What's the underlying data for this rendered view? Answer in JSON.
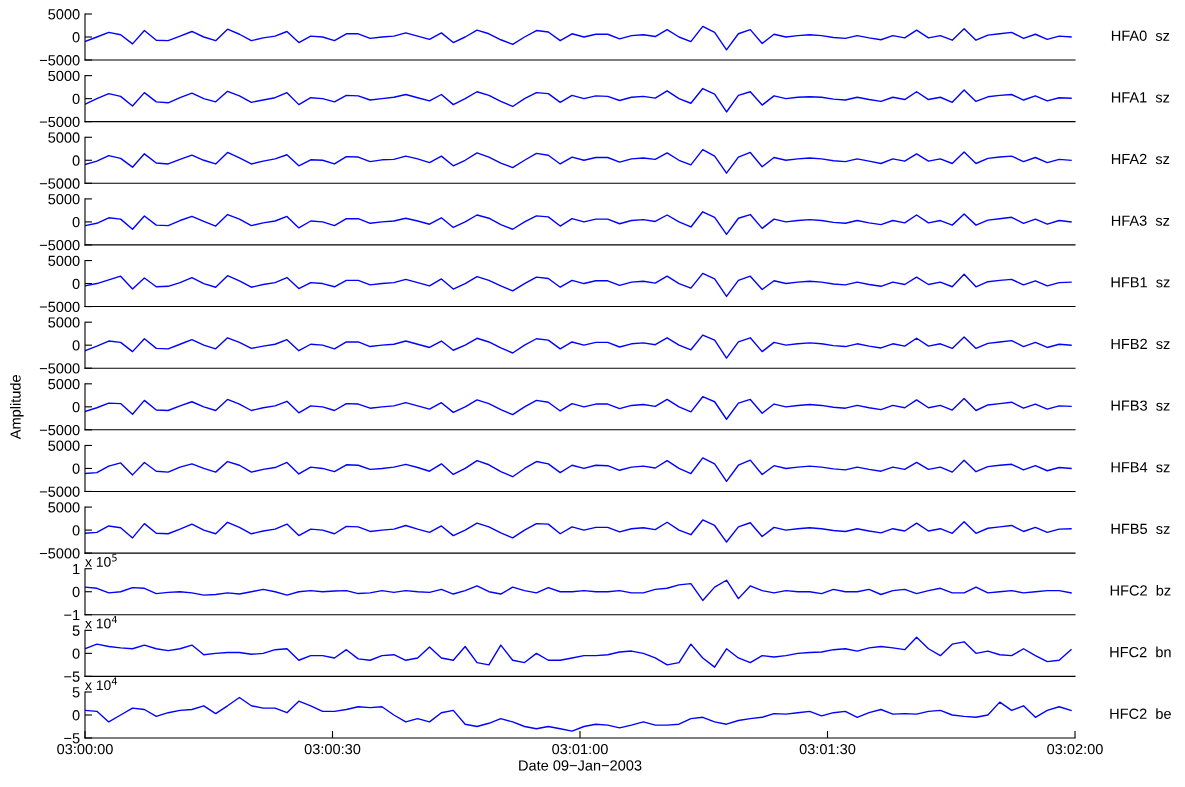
{
  "chart_data": [
    {
      "type": "line",
      "tick_labels": "y",
      "xlim": [
        3,
        3.0333333
      ],
      "ylim": [
        -5000,
        5000
      ],
      "yticks": [
        5000,
        0,
        {
          "value": -5000,
          "label": "−5000"
        }
      ],
      "annotations": [
        "HFA0  sz"
      ],
      "x": [
        3,
        3.0004,
        3.0008,
        3.0012,
        3.0016,
        3.002,
        3.0024,
        3.0028,
        3.0032,
        3.0036,
        3.004,
        3.0044,
        3.0048,
        3.0052,
        3.0056,
        3.006,
        3.0064,
        3.0068,
        3.0072,
        3.0076,
        3.008,
        3.0084,
        3.0088,
        3.0092,
        3.0096,
        3.01,
        3.0104,
        3.0108,
        3.0112,
        3.0116,
        3.012,
        3.0124,
        3.0128,
        3.0132,
        3.0136,
        3.014,
        3.0144,
        3.0148,
        3.0152,
        3.0156,
        3.016,
        3.0164,
        3.0168,
        3.0172,
        3.0176,
        3.018,
        3.0184,
        3.0188,
        3.0192,
        3.0196,
        3.02,
        3.0204,
        3.0208,
        3.0212,
        3.0216,
        3.022,
        3.0224,
        3.0228,
        3.0232,
        3.0236,
        3.024,
        3.0244,
        3.0248,
        3.0252,
        3.0256,
        3.026,
        3.0264,
        3.0268,
        3.0272,
        3.0276,
        3.028,
        3.0284,
        3.0288,
        3.0292,
        3.0296,
        3.03,
        3.0304,
        3.0308,
        3.0312,
        3.0316,
        3.032,
        3.0324,
        3.0328,
        3.0332
      ],
      "series": [
        {
          "color": "#0000ff",
          "values": [
            -1000,
            0,
            1000,
            500,
            -1500,
            1400,
            -700,
            -800,
            200,
            1200,
            0,
            -800,
            1700,
            600,
            -800,
            -200,
            200,
            1200,
            -1200,
            200,
            0,
            -800,
            700,
            700,
            -300,
            0,
            200,
            900,
            200,
            -500,
            900,
            -1200,
            0,
            1500,
            700,
            -600,
            -1600,
            0,
            1400,
            1100,
            -800,
            700,
            0,
            600,
            600,
            -400,
            300,
            500,
            100,
            1600,
            0,
            -1000,
            2300,
            1000,
            -2800,
            700,
            1600,
            -1400,
            600,
            0,
            300,
            500,
            300,
            -100,
            -300,
            300,
            -200,
            -600,
            300,
            -200,
            1500,
            -200,
            300,
            -700,
            1800,
            -700,
            400,
            700,
            1000,
            -300,
            600,
            -500,
            200,
            0
          ]
        }
      ]
    },
    {
      "type": "line",
      "tick_labels": "y",
      "xlim": [
        3,
        3.0333333
      ],
      "ylim": [
        -5000,
        5000
      ],
      "yticks": [
        5000,
        0,
        {
          "value": -5000,
          "label": "−5000"
        }
      ],
      "annotations": [
        "HFA1  sz"
      ],
      "x": [
        3,
        3.0004,
        3.0008,
        3.0012,
        3.0016,
        3.002,
        3.0024,
        3.0028,
        3.0032,
        3.0036,
        3.004,
        3.0044,
        3.0048,
        3.0052,
        3.0056,
        3.006,
        3.0064,
        3.0068,
        3.0072,
        3.0076,
        3.008,
        3.0084,
        3.0088,
        3.0092,
        3.0096,
        3.01,
        3.0104,
        3.0108,
        3.0112,
        3.0116,
        3.012,
        3.0124,
        3.0128,
        3.0132,
        3.0136,
        3.014,
        3.0144,
        3.0148,
        3.0152,
        3.0156,
        3.016,
        3.0164,
        3.0168,
        3.0172,
        3.0176,
        3.018,
        3.0184,
        3.0188,
        3.0192,
        3.0196,
        3.02,
        3.0204,
        3.0208,
        3.0212,
        3.0216,
        3.022,
        3.0224,
        3.0228,
        3.0232,
        3.0236,
        3.024,
        3.0244,
        3.0248,
        3.0252,
        3.0256,
        3.026,
        3.0264,
        3.0268,
        3.0272,
        3.0276,
        3.028,
        3.0284,
        3.0288,
        3.0292,
        3.0296,
        3.03,
        3.0304,
        3.0308,
        3.0312,
        3.0316,
        3.032,
        3.0324,
        3.0328,
        3.0332
      ],
      "series": [
        {
          "color": "#0000ff",
          "values": [
            -1200,
            0,
            1100,
            500,
            -1600,
            1300,
            -700,
            -900,
            200,
            1200,
            0,
            -700,
            1600,
            600,
            -800,
            -300,
            200,
            1300,
            -1300,
            200,
            0,
            -700,
            700,
            600,
            -300,
            0,
            300,
            900,
            200,
            -500,
            900,
            -1300,
            0,
            1500,
            700,
            -600,
            -1700,
            0,
            1300,
            1100,
            -800,
            700,
            0,
            600,
            500,
            -400,
            300,
            500,
            100,
            1700,
            0,
            -1000,
            2200,
            1000,
            -2900,
            700,
            1500,
            -1400,
            600,
            0,
            300,
            400,
            300,
            -100,
            -300,
            300,
            -200,
            -600,
            300,
            -200,
            1500,
            -200,
            300,
            -800,
            1900,
            -600,
            400,
            700,
            900,
            -300,
            600,
            -500,
            200,
            100
          ]
        }
      ]
    },
    {
      "type": "line",
      "tick_labels": "y",
      "xlim": [
        3,
        3.0333333
      ],
      "ylim": [
        -5000,
        5000
      ],
      "yticks": [
        5000,
        0,
        {
          "value": -5000,
          "label": "−5000"
        }
      ],
      "annotations": [
        "HFA2  sz"
      ],
      "x": [
        3,
        3.0004,
        3.0008,
        3.0012,
        3.0016,
        3.002,
        3.0024,
        3.0028,
        3.0032,
        3.0036,
        3.004,
        3.0044,
        3.0048,
        3.0052,
        3.0056,
        3.006,
        3.0064,
        3.0068,
        3.0072,
        3.0076,
        3.008,
        3.0084,
        3.0088,
        3.0092,
        3.0096,
        3.01,
        3.0104,
        3.0108,
        3.0112,
        3.0116,
        3.012,
        3.0124,
        3.0128,
        3.0132,
        3.0136,
        3.014,
        3.0144,
        3.0148,
        3.0152,
        3.0156,
        3.016,
        3.0164,
        3.0168,
        3.0172,
        3.0176,
        3.018,
        3.0184,
        3.0188,
        3.0192,
        3.0196,
        3.02,
        3.0204,
        3.0208,
        3.0212,
        3.0216,
        3.022,
        3.0224,
        3.0228,
        3.0232,
        3.0236,
        3.024,
        3.0244,
        3.0248,
        3.0252,
        3.0256,
        3.026,
        3.0264,
        3.0268,
        3.0272,
        3.0276,
        3.028,
        3.0284,
        3.0288,
        3.0292,
        3.0296,
        3.03,
        3.0304,
        3.0308,
        3.0312,
        3.0316,
        3.032,
        3.0324,
        3.0328,
        3.0332
      ],
      "series": [
        {
          "color": "#0000ff",
          "values": [
            -900,
            -200,
            1000,
            400,
            -1500,
            1400,
            -600,
            -800,
            200,
            1100,
            0,
            -800,
            1700,
            500,
            -800,
            -200,
            300,
            1200,
            -1200,
            100,
            0,
            -800,
            800,
            700,
            -300,
            100,
            200,
            900,
            300,
            -500,
            900,
            -1200,
            0,
            1600,
            700,
            -600,
            -1600,
            0,
            1500,
            1100,
            -800,
            700,
            0,
            600,
            600,
            -400,
            300,
            500,
            200,
            1600,
            0,
            -1000,
            2300,
            900,
            -2800,
            700,
            1700,
            -1400,
            600,
            0,
            300,
            500,
            300,
            -100,
            -300,
            300,
            -200,
            -700,
            300,
            -200,
            1400,
            -200,
            300,
            -700,
            1800,
            -700,
            400,
            700,
            900,
            -300,
            600,
            -500,
            200,
            0
          ]
        }
      ]
    },
    {
      "type": "line",
      "tick_labels": "y",
      "xlim": [
        3,
        3.0333333
      ],
      "ylim": [
        -5000,
        5000
      ],
      "yticks": [
        5000,
        0,
        {
          "value": -5000,
          "label": "−5000"
        }
      ],
      "annotations": [
        "HFA3  sz"
      ],
      "x": [
        3,
        3.0004,
        3.0008,
        3.0012,
        3.0016,
        3.002,
        3.0024,
        3.0028,
        3.0032,
        3.0036,
        3.004,
        3.0044,
        3.0048,
        3.0052,
        3.0056,
        3.006,
        3.0064,
        3.0068,
        3.0072,
        3.0076,
        3.008,
        3.0084,
        3.0088,
        3.0092,
        3.0096,
        3.01,
        3.0104,
        3.0108,
        3.0112,
        3.0116,
        3.012,
        3.0124,
        3.0128,
        3.0132,
        3.0136,
        3.014,
        3.0144,
        3.0148,
        3.0152,
        3.0156,
        3.016,
        3.0164,
        3.0168,
        3.0172,
        3.0176,
        3.018,
        3.0184,
        3.0188,
        3.0192,
        3.0196,
        3.02,
        3.0204,
        3.0208,
        3.0212,
        3.0216,
        3.022,
        3.0224,
        3.0228,
        3.0232,
        3.0236,
        3.024,
        3.0244,
        3.0248,
        3.0252,
        3.0256,
        3.026,
        3.0264,
        3.0268,
        3.0272,
        3.0276,
        3.028,
        3.0284,
        3.0288,
        3.0292,
        3.0296,
        3.03,
        3.0304,
        3.0308,
        3.0312,
        3.0316,
        3.032,
        3.0324,
        3.0328,
        3.0332
      ],
      "series": [
        {
          "color": "#0000ff",
          "values": [
            -800,
            -300,
            900,
            600,
            -1600,
            1300,
            -700,
            -800,
            300,
            1200,
            100,
            -900,
            1600,
            600,
            -800,
            -200,
            200,
            1200,
            -1300,
            200,
            0,
            -800,
            700,
            700,
            -300,
            0,
            200,
            800,
            200,
            -500,
            900,
            -1200,
            0,
            1500,
            800,
            -600,
            -1600,
            0,
            1300,
            1100,
            -900,
            700,
            0,
            600,
            600,
            -400,
            300,
            500,
            100,
            1500,
            0,
            -1100,
            2200,
            1000,
            -2700,
            800,
            1600,
            -1400,
            600,
            0,
            300,
            500,
            300,
            -100,
            -300,
            300,
            -200,
            -600,
            300,
            -200,
            1500,
            -200,
            300,
            -700,
            1700,
            -700,
            400,
            700,
            1000,
            -300,
            600,
            -500,
            300,
            0
          ]
        }
      ]
    },
    {
      "type": "line",
      "tick_labels": "y",
      "xlim": [
        3,
        3.0333333
      ],
      "ylim": [
        -5000,
        5000
      ],
      "yticks": [
        5000,
        0,
        {
          "value": -5000,
          "label": "−5000"
        }
      ],
      "annotations": [
        "HFB1  sz"
      ],
      "x": [
        3,
        3.0004,
        3.0008,
        3.0012,
        3.0016,
        3.002,
        3.0024,
        3.0028,
        3.0032,
        3.0036,
        3.004,
        3.0044,
        3.0048,
        3.0052,
        3.0056,
        3.006,
        3.0064,
        3.0068,
        3.0072,
        3.0076,
        3.008,
        3.0084,
        3.0088,
        3.0092,
        3.0096,
        3.01,
        3.0104,
        3.0108,
        3.0112,
        3.0116,
        3.012,
        3.0124,
        3.0128,
        3.0132,
        3.0136,
        3.014,
        3.0144,
        3.0148,
        3.0152,
        3.0156,
        3.016,
        3.0164,
        3.0168,
        3.0172,
        3.0176,
        3.018,
        3.0184,
        3.0188,
        3.0192,
        3.0196,
        3.02,
        3.0204,
        3.0208,
        3.0212,
        3.0216,
        3.022,
        3.0224,
        3.0228,
        3.0232,
        3.0236,
        3.024,
        3.0244,
        3.0248,
        3.0252,
        3.0256,
        3.026,
        3.0264,
        3.0268,
        3.0272,
        3.0276,
        3.028,
        3.0284,
        3.0288,
        3.0292,
        3.0296,
        3.03,
        3.0304,
        3.0308,
        3.0312,
        3.0316,
        3.032,
        3.0324,
        3.0328,
        3.0332
      ],
      "series": [
        {
          "color": "#0000ff",
          "values": [
            -500,
            0,
            800,
            1600,
            -1200,
            1200,
            -700,
            -600,
            200,
            1300,
            0,
            -800,
            1700,
            600,
            -800,
            -200,
            200,
            1300,
            -1100,
            200,
            0,
            -700,
            700,
            700,
            -300,
            0,
            200,
            900,
            200,
            -500,
            1000,
            -1200,
            0,
            1500,
            700,
            -500,
            -1600,
            0,
            1400,
            1100,
            -800,
            700,
            0,
            600,
            600,
            -400,
            300,
            500,
            100,
            1600,
            0,
            -1000,
            2200,
            1000,
            -2800,
            700,
            1600,
            -1300,
            600,
            0,
            300,
            500,
            300,
            -100,
            -300,
            300,
            -200,
            -600,
            300,
            -200,
            1400,
            -200,
            300,
            -700,
            2000,
            -700,
            400,
            700,
            900,
            -300,
            600,
            -500,
            200,
            300
          ]
        }
      ]
    },
    {
      "type": "line",
      "tick_labels": "y",
      "xlim": [
        3,
        3.0333333
      ],
      "ylim": [
        -5000,
        5000
      ],
      "yticks": [
        5000,
        0,
        {
          "value": -5000,
          "label": "−5000"
        }
      ],
      "annotations": [
        "HFB2  sz"
      ],
      "x": [
        3,
        3.0004,
        3.0008,
        3.0012,
        3.0016,
        3.002,
        3.0024,
        3.0028,
        3.0032,
        3.0036,
        3.004,
        3.0044,
        3.0048,
        3.0052,
        3.0056,
        3.006,
        3.0064,
        3.0068,
        3.0072,
        3.0076,
        3.008,
        3.0084,
        3.0088,
        3.0092,
        3.0096,
        3.01,
        3.0104,
        3.0108,
        3.0112,
        3.0116,
        3.012,
        3.0124,
        3.0128,
        3.0132,
        3.0136,
        3.014,
        3.0144,
        3.0148,
        3.0152,
        3.0156,
        3.016,
        3.0164,
        3.0168,
        3.0172,
        3.0176,
        3.018,
        3.0184,
        3.0188,
        3.0192,
        3.0196,
        3.02,
        3.0204,
        3.0208,
        3.0212,
        3.0216,
        3.022,
        3.0224,
        3.0228,
        3.0232,
        3.0236,
        3.024,
        3.0244,
        3.0248,
        3.0252,
        3.0256,
        3.026,
        3.0264,
        3.0268,
        3.0272,
        3.0276,
        3.028,
        3.0284,
        3.0288,
        3.0292,
        3.0296,
        3.03,
        3.0304,
        3.0308,
        3.0312,
        3.0316,
        3.032,
        3.0324,
        3.0328,
        3.0332
      ],
      "series": [
        {
          "color": "#0000ff",
          "values": [
            -1200,
            -200,
            900,
            600,
            -1400,
            1400,
            -700,
            -800,
            200,
            1200,
            0,
            -800,
            1600,
            600,
            -700,
            -200,
            200,
            1200,
            -1200,
            200,
            0,
            -800,
            700,
            700,
            -300,
            0,
            200,
            900,
            200,
            -500,
            900,
            -1100,
            0,
            1500,
            700,
            -600,
            -1700,
            0,
            1400,
            1100,
            -800,
            700,
            0,
            600,
            600,
            -400,
            300,
            500,
            100,
            1600,
            0,
            -1000,
            2200,
            1100,
            -2800,
            700,
            1600,
            -1400,
            600,
            0,
            300,
            500,
            300,
            -100,
            -300,
            300,
            -200,
            -600,
            300,
            -200,
            1500,
            -200,
            300,
            -700,
            1800,
            -700,
            400,
            700,
            1000,
            -300,
            600,
            -500,
            200,
            0
          ]
        }
      ]
    },
    {
      "type": "line",
      "tick_labels": "y",
      "xlim": [
        3,
        3.0333333
      ],
      "ylim": [
        -5000,
        5000
      ],
      "yticks": [
        5000,
        0,
        {
          "value": -5000,
          "label": "−5000"
        }
      ],
      "ylabel": "Amplitude",
      "annotations": [
        "HFB3  sz"
      ],
      "x": [
        3,
        3.0004,
        3.0008,
        3.0012,
        3.0016,
        3.002,
        3.0024,
        3.0028,
        3.0032,
        3.0036,
        3.004,
        3.0044,
        3.0048,
        3.0052,
        3.0056,
        3.006,
        3.0064,
        3.0068,
        3.0072,
        3.0076,
        3.008,
        3.0084,
        3.0088,
        3.0092,
        3.0096,
        3.01,
        3.0104,
        3.0108,
        3.0112,
        3.0116,
        3.012,
        3.0124,
        3.0128,
        3.0132,
        3.0136,
        3.014,
        3.0144,
        3.0148,
        3.0152,
        3.0156,
        3.016,
        3.0164,
        3.0168,
        3.0172,
        3.0176,
        3.018,
        3.0184,
        3.0188,
        3.0192,
        3.0196,
        3.02,
        3.0204,
        3.0208,
        3.0212,
        3.0216,
        3.022,
        3.0224,
        3.0228,
        3.0232,
        3.0236,
        3.024,
        3.0244,
        3.0248,
        3.0252,
        3.0256,
        3.026,
        3.0264,
        3.0268,
        3.0272,
        3.0276,
        3.028,
        3.0284,
        3.0288,
        3.0292,
        3.0296,
        3.03,
        3.0304,
        3.0308,
        3.0312,
        3.0316,
        3.032,
        3.0324,
        3.0328,
        3.0332
      ],
      "series": [
        {
          "color": "#0000ff",
          "values": [
            -1000,
            -200,
            800,
            700,
            -1600,
            1400,
            -700,
            -800,
            200,
            1100,
            0,
            -800,
            1600,
            600,
            -800,
            -200,
            200,
            1200,
            -1300,
            200,
            0,
            -800,
            700,
            600,
            -300,
            0,
            200,
            900,
            200,
            -500,
            900,
            -1200,
            0,
            1500,
            700,
            -600,
            -1700,
            0,
            1400,
            1000,
            -900,
            700,
            0,
            600,
            600,
            -400,
            300,
            500,
            100,
            1600,
            0,
            -1100,
            2200,
            1100,
            -2700,
            800,
            1600,
            -1400,
            600,
            0,
            300,
            500,
            300,
            -100,
            -300,
            300,
            -200,
            -600,
            300,
            -200,
            1500,
            -200,
            300,
            -700,
            1800,
            -800,
            400,
            700,
            1000,
            -300,
            600,
            -500,
            200,
            100
          ]
        }
      ]
    },
    {
      "type": "line",
      "tick_labels": "y",
      "xlim": [
        3,
        3.0333333
      ],
      "ylim": [
        -5000,
        5000
      ],
      "yticks": [
        5000,
        0,
        {
          "value": -5000,
          "label": "−5000"
        }
      ],
      "annotations": [
        "HFB4  sz"
      ],
      "x": [
        3,
        3.0004,
        3.0008,
        3.0012,
        3.0016,
        3.002,
        3.0024,
        3.0028,
        3.0032,
        3.0036,
        3.004,
        3.0044,
        3.0048,
        3.0052,
        3.0056,
        3.006,
        3.0064,
        3.0068,
        3.0072,
        3.0076,
        3.008,
        3.0084,
        3.0088,
        3.0092,
        3.0096,
        3.01,
        3.0104,
        3.0108,
        3.0112,
        3.0116,
        3.012,
        3.0124,
        3.0128,
        3.0132,
        3.0136,
        3.014,
        3.0144,
        3.0148,
        3.0152,
        3.0156,
        3.016,
        3.0164,
        3.0168,
        3.0172,
        3.0176,
        3.018,
        3.0184,
        3.0188,
        3.0192,
        3.0196,
        3.02,
        3.0204,
        3.0208,
        3.0212,
        3.0216,
        3.022,
        3.0224,
        3.0228,
        3.0232,
        3.0236,
        3.024,
        3.0244,
        3.0248,
        3.0252,
        3.0256,
        3.026,
        3.0264,
        3.0268,
        3.0272,
        3.0276,
        3.028,
        3.0284,
        3.0288,
        3.0292,
        3.0296,
        3.03,
        3.0304,
        3.0308,
        3.0312,
        3.0316,
        3.032,
        3.0324,
        3.0328,
        3.0332
      ],
      "series": [
        {
          "color": "#0000ff",
          "values": [
            -1100,
            -900,
            500,
            1200,
            -1400,
            1300,
            -600,
            -800,
            300,
            1000,
            0,
            -800,
            1500,
            700,
            -800,
            -200,
            200,
            1300,
            -1200,
            300,
            0,
            -700,
            800,
            700,
            -200,
            0,
            300,
            900,
            200,
            -600,
            1000,
            -1300,
            0,
            1700,
            800,
            -700,
            -1800,
            0,
            1500,
            1000,
            -900,
            700,
            0,
            700,
            600,
            -400,
            300,
            500,
            100,
            1700,
            0,
            -1100,
            2300,
            1000,
            -2800,
            700,
            1800,
            -1300,
            600,
            0,
            300,
            500,
            300,
            -100,
            -300,
            300,
            -200,
            -600,
            300,
            -200,
            1300,
            -200,
            300,
            -800,
            1800,
            -700,
            400,
            700,
            900,
            -300,
            600,
            -500,
            200,
            0
          ]
        }
      ]
    },
    {
      "type": "line",
      "tick_labels": "y",
      "xlim": [
        3,
        3.0333333
      ],
      "ylim": [
        -5000,
        5000
      ],
      "yticks": [
        5000,
        0,
        {
          "value": -5000,
          "label": "−5000"
        }
      ],
      "annotations": [
        "HFB5  sz"
      ],
      "x": [
        3,
        3.0004,
        3.0008,
        3.0012,
        3.0016,
        3.002,
        3.0024,
        3.0028,
        3.0032,
        3.0036,
        3.004,
        3.0044,
        3.0048,
        3.0052,
        3.0056,
        3.006,
        3.0064,
        3.0068,
        3.0072,
        3.0076,
        3.008,
        3.0084,
        3.0088,
        3.0092,
        3.0096,
        3.01,
        3.0104,
        3.0108,
        3.0112,
        3.0116,
        3.012,
        3.0124,
        3.0128,
        3.0132,
        3.0136,
        3.014,
        3.0144,
        3.0148,
        3.0152,
        3.0156,
        3.016,
        3.0164,
        3.0168,
        3.0172,
        3.0176,
        3.018,
        3.0184,
        3.0188,
        3.0192,
        3.0196,
        3.02,
        3.0204,
        3.0208,
        3.0212,
        3.0216,
        3.022,
        3.0224,
        3.0228,
        3.0232,
        3.0236,
        3.024,
        3.0244,
        3.0248,
        3.0252,
        3.0256,
        3.026,
        3.0264,
        3.0268,
        3.0272,
        3.0276,
        3.028,
        3.0284,
        3.0288,
        3.0292,
        3.0296,
        3.03,
        3.0304,
        3.0308,
        3.0312,
        3.0316,
        3.032,
        3.0324,
        3.0328,
        3.0332
      ],
      "series": [
        {
          "color": "#0000ff",
          "values": [
            -700,
            -500,
            900,
            500,
            -1700,
            1400,
            -700,
            -800,
            200,
            1300,
            0,
            -800,
            1700,
            600,
            -800,
            -200,
            200,
            1300,
            -1200,
            200,
            0,
            -800,
            800,
            700,
            -300,
            0,
            200,
            1000,
            200,
            -500,
            900,
            -1200,
            0,
            1500,
            700,
            -600,
            -1700,
            0,
            1400,
            1300,
            -800,
            700,
            0,
            600,
            600,
            -400,
            300,
            500,
            100,
            1700,
            0,
            -1000,
            2200,
            1000,
            -2600,
            700,
            1600,
            -1400,
            600,
            0,
            300,
            500,
            300,
            -100,
            -300,
            300,
            -200,
            -600,
            300,
            -200,
            1500,
            -200,
            300,
            -700,
            1800,
            -700,
            400,
            700,
            1000,
            -300,
            600,
            -500,
            200,
            300
          ]
        }
      ]
    },
    {
      "type": "line",
      "tick_labels": "y",
      "xlim": [
        3,
        3.0333333
      ],
      "ylim": [
        -1,
        1
      ],
      "yticks": [
        1,
        0,
        {
          "value": -1,
          "label": "−1"
        }
      ],
      "annotations": [
        "HFC2  bz",
        "x 10$^{5}$"
      ],
      "x": [
        3,
        3.0004,
        3.0008,
        3.0012,
        3.0016,
        3.002,
        3.0024,
        3.0028,
        3.0032,
        3.0036,
        3.004,
        3.0044,
        3.0048,
        3.0052,
        3.0056,
        3.006,
        3.0064,
        3.0068,
        3.0072,
        3.0076,
        3.008,
        3.0084,
        3.0088,
        3.0092,
        3.0096,
        3.01,
        3.0104,
        3.0108,
        3.0112,
        3.0116,
        3.012,
        3.0124,
        3.0128,
        3.0132,
        3.0136,
        3.014,
        3.0144,
        3.0148,
        3.0152,
        3.0156,
        3.016,
        3.0164,
        3.0168,
        3.0172,
        3.0176,
        3.018,
        3.0184,
        3.0188,
        3.0192,
        3.0196,
        3.02,
        3.0204,
        3.0208,
        3.0212,
        3.0216,
        3.022,
        3.0224,
        3.0228,
        3.0232,
        3.0236,
        3.024,
        3.0244,
        3.0248,
        3.0252,
        3.0256,
        3.026,
        3.0264,
        3.0268,
        3.0272,
        3.0276,
        3.028,
        3.0284,
        3.0288,
        3.0292,
        3.0296,
        3.03,
        3.0304,
        3.0308,
        3.0312,
        3.0316,
        3.032,
        3.0324,
        3.0328,
        3.0332
      ],
      "series": [
        {
          "color": "#0000ff",
          "values": [
            0.2,
            0.15,
            -0.05,
            0,
            0.18,
            0.15,
            -0.08,
            -0.03,
            0,
            -0.05,
            -0.15,
            -0.12,
            -0.05,
            -0.1,
            0,
            0.1,
            0,
            -0.15,
            0,
            0.05,
            0,
            0.03,
            0.05,
            -0.08,
            -0.05,
            0.05,
            -0.03,
            0.05,
            0,
            -0.03,
            0.1,
            -0.1,
            0.05,
            0.25,
            0,
            -0.1,
            0.2,
            0.05,
            -0.05,
            0.18,
            0,
            0,
            0.05,
            0,
            0,
            0.05,
            -0.05,
            -0.05,
            0.1,
            0.15,
            0.3,
            0.35,
            -0.38,
            0.2,
            0.5,
            -0.3,
            0.25,
            0.05,
            -0.05,
            0.05,
            0,
            0,
            -0.08,
            0.1,
            0,
            0,
            0.1,
            -0.12,
            0.05,
            0.1,
            -0.08,
            0.05,
            0.15,
            -0.05,
            -0.05,
            0.2,
            -0.05,
            0,
            0.05,
            -0.05,
            0,
            0.05,
            0.05,
            -0.05
          ]
        }
      ]
    },
    {
      "type": "line",
      "tick_labels": "y",
      "xlim": [
        3,
        3.0333333
      ],
      "ylim": [
        -5,
        5
      ],
      "yticks": [
        5,
        0,
        {
          "value": -5,
          "label": "−5"
        }
      ],
      "annotations": [
        "HFC2  bn",
        "x 10$^{4}$"
      ],
      "x": [
        3,
        3.0004,
        3.0008,
        3.0012,
        3.0016,
        3.002,
        3.0024,
        3.0028,
        3.0032,
        3.0036,
        3.004,
        3.0044,
        3.0048,
        3.0052,
        3.0056,
        3.006,
        3.0064,
        3.0068,
        3.0072,
        3.0076,
        3.008,
        3.0084,
        3.0088,
        3.0092,
        3.0096,
        3.01,
        3.0104,
        3.0108,
        3.0112,
        3.0116,
        3.012,
        3.0124,
        3.0128,
        3.0132,
        3.0136,
        3.014,
        3.0144,
        3.0148,
        3.0152,
        3.0156,
        3.016,
        3.0164,
        3.0168,
        3.0172,
        3.0176,
        3.018,
        3.0184,
        3.0188,
        3.0192,
        3.0196,
        3.02,
        3.0204,
        3.0208,
        3.0212,
        3.0216,
        3.022,
        3.0224,
        3.0228,
        3.0232,
        3.0236,
        3.024,
        3.0244,
        3.0248,
        3.0252,
        3.0256,
        3.026,
        3.0264,
        3.0268,
        3.0272,
        3.0276,
        3.028,
        3.0284,
        3.0288,
        3.0292,
        3.0296,
        3.03,
        3.0304,
        3.0308,
        3.0312,
        3.0316,
        3.032,
        3.0324,
        3.0328,
        3.0332
      ],
      "series": [
        {
          "color": "#0000ff",
          "values": [
            1,
            2,
            1.5,
            1.2,
            1,
            1.8,
            1,
            0.6,
            1,
            1.8,
            -0.3,
            0,
            0.2,
            0.2,
            -0.2,
            0,
            0.8,
            1,
            -1.5,
            -0.5,
            -0.5,
            -1,
            0.8,
            -1.2,
            -1.5,
            -0.5,
            -0.3,
            -1.5,
            -1,
            1.4,
            -1,
            -1.5,
            1.5,
            -2,
            -2.5,
            1.8,
            -1.5,
            -2,
            0,
            -1.5,
            -1.5,
            -1,
            -0.5,
            -0.5,
            -0.3,
            0.3,
            0.5,
            0,
            -1,
            -2.5,
            -2,
            2,
            -1,
            -3,
            1,
            -1,
            -2,
            -0.5,
            -0.8,
            -0.5,
            0,
            0.2,
            0.3,
            0.8,
            1,
            0.5,
            1.2,
            1.5,
            1.2,
            0.8,
            3.5,
            1,
            -0.5,
            2,
            2.5,
            0,
            0.5,
            -0.3,
            -0.5,
            1,
            -0.5,
            -1.8,
            -1.5,
            0.8
          ]
        }
      ]
    },
    {
      "type": "line",
      "xlim": [
        3,
        3.0333333
      ],
      "ylim": [
        -5,
        5
      ],
      "yticks": [
        5,
        0,
        {
          "value": -5,
          "label": "−5"
        }
      ],
      "xlabel": "Date 09−Jan−2003",
      "annotations": [
        "HFC2  be",
        "x 10$^{4}$"
      ],
      "xticks": [
        {
          "value": 3,
          "label": "03:00:00"
        },
        {
          "value": 3.0083333,
          "label": "03:00:30"
        },
        {
          "value": 3.0166667,
          "label": "03:01:00"
        },
        {
          "value": 3.025,
          "label": "03:01:30"
        },
        {
          "value": 3.0333333,
          "label": "03:02:00"
        }
      ],
      "x": [
        3,
        3.0004,
        3.0008,
        3.0012,
        3.0016,
        3.002,
        3.0024,
        3.0028,
        3.0032,
        3.0036,
        3.004,
        3.0044,
        3.0048,
        3.0052,
        3.0056,
        3.006,
        3.0064,
        3.0068,
        3.0072,
        3.0076,
        3.008,
        3.0084,
        3.0088,
        3.0092,
        3.0096,
        3.01,
        3.0104,
        3.0108,
        3.0112,
        3.0116,
        3.012,
        3.0124,
        3.0128,
        3.0132,
        3.0136,
        3.014,
        3.0144,
        3.0148,
        3.0152,
        3.0156,
        3.016,
        3.0164,
        3.0168,
        3.0172,
        3.0176,
        3.018,
        3.0184,
        3.0188,
        3.0192,
        3.0196,
        3.02,
        3.0204,
        3.0208,
        3.0212,
        3.0216,
        3.022,
        3.0224,
        3.0228,
        3.0232,
        3.0236,
        3.024,
        3.0244,
        3.0248,
        3.0252,
        3.0256,
        3.026,
        3.0264,
        3.0268,
        3.0272,
        3.0276,
        3.028,
        3.0284,
        3.0288,
        3.0292,
        3.0296,
        3.03,
        3.0304,
        3.0308,
        3.0312,
        3.0316,
        3.032,
        3.0324,
        3.0328,
        3.0332
      ],
      "series": [
        {
          "color": "#0000ff",
          "values": [
            1,
            0.8,
            -1.5,
            0,
            1.5,
            1.2,
            -0.3,
            0.5,
            1,
            1.2,
            2,
            0.3,
            2,
            3.8,
            2,
            1.5,
            1.5,
            0.5,
            3,
            2,
            0.8,
            0.8,
            1.2,
            1.8,
            1.6,
            1.8,
            0,
            -1.5,
            -0.8,
            -1.5,
            0.5,
            1,
            -2,
            -2.5,
            -1.8,
            -0.8,
            -1.5,
            -2.5,
            -3,
            -2.5,
            -3,
            -3.5,
            -2.5,
            -2,
            -2.2,
            -2.8,
            -2.2,
            -1.5,
            -2.2,
            -2.2,
            -2,
            -0.8,
            -0.5,
            -1.5,
            -2,
            -1.2,
            -0.8,
            -0.5,
            0.3,
            0.2,
            0.5,
            0.8,
            -0.2,
            0.5,
            0.8,
            -0.5,
            0.5,
            1.2,
            0.2,
            0.3,
            0.2,
            0.8,
            1,
            0,
            -0.3,
            -0.5,
            0,
            2.8,
            1,
            2,
            -0.5,
            1,
            1.8,
            1
          ]
        }
      ]
    }
  ]
}
